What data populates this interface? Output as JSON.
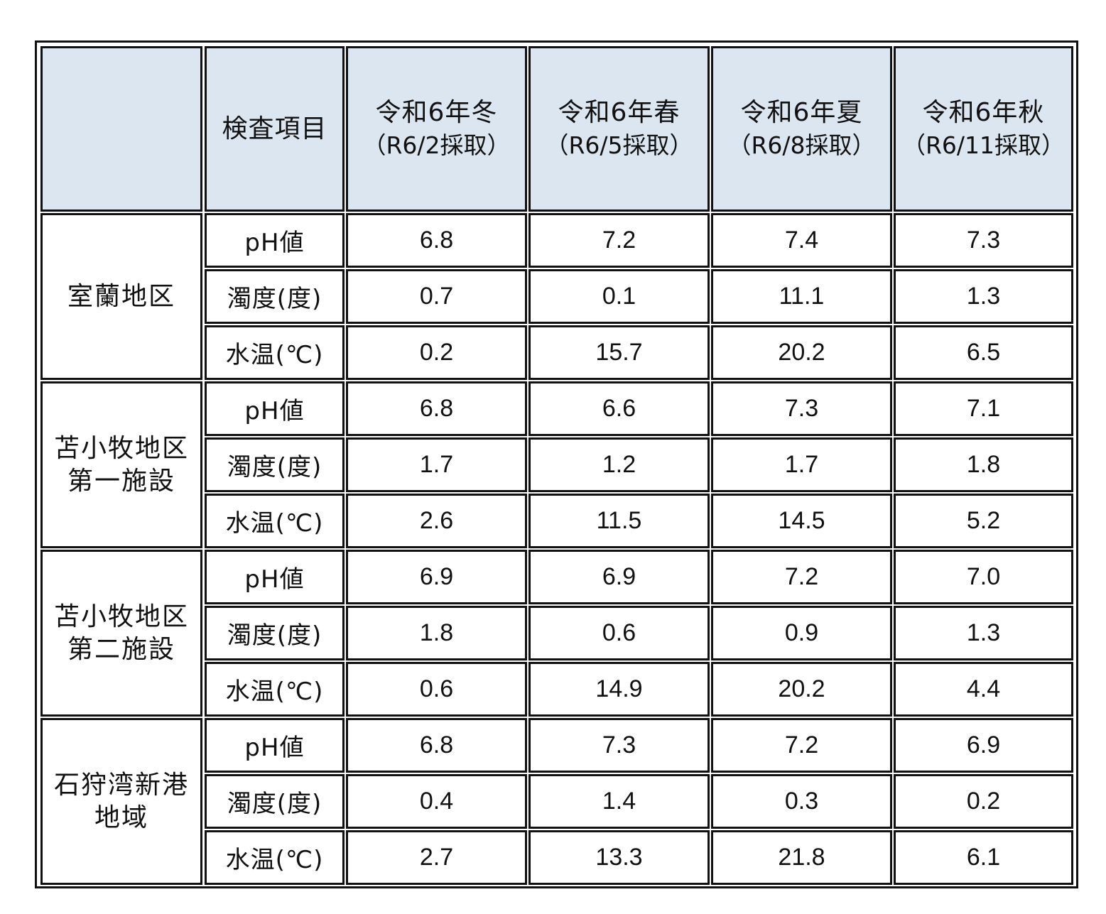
{
  "table": {
    "corner": "",
    "item_header": "検査項目",
    "columns": [
      {
        "season": "令和6年冬",
        "sampled": "（R6/2採取）"
      },
      {
        "season": "令和6年春",
        "sampled": "（R6/5採取）"
      },
      {
        "season": "令和6年夏",
        "sampled": "（R6/8採取）"
      },
      {
        "season": "令和6年秋",
        "sampled": "（R6/11採取）"
      }
    ],
    "areas": [
      {
        "name_lines": [
          "室蘭地区"
        ],
        "rows": [
          {
            "item": "pH値",
            "values": [
              "6.8",
              "7.2",
              "7.4",
              "7.3"
            ]
          },
          {
            "item": "濁度(度)",
            "values": [
              "0.7",
              "0.1",
              "11.1",
              "1.3"
            ]
          },
          {
            "item": "水温(℃)",
            "values": [
              "0.2",
              "15.7",
              "20.2",
              "6.5"
            ]
          }
        ]
      },
      {
        "name_lines": [
          "苫小牧地区",
          "第一施設"
        ],
        "rows": [
          {
            "item": "pH値",
            "values": [
              "6.8",
              "6.6",
              "7.3",
              "7.1"
            ]
          },
          {
            "item": "濁度(度)",
            "values": [
              "1.7",
              "1.2",
              "1.7",
              "1.8"
            ]
          },
          {
            "item": "水温(℃)",
            "values": [
              "2.6",
              "11.5",
              "14.5",
              "5.2"
            ]
          }
        ]
      },
      {
        "name_lines": [
          "苫小牧地区",
          "第二施設"
        ],
        "rows": [
          {
            "item": "pH値",
            "values": [
              "6.9",
              "6.9",
              "7.2",
              "7.0"
            ]
          },
          {
            "item": "濁度(度)",
            "values": [
              "1.8",
              "0.6",
              "0.9",
              "1.3"
            ]
          },
          {
            "item": "水温(℃)",
            "values": [
              "0.6",
              "14.9",
              "20.2",
              "4.4"
            ]
          }
        ]
      },
      {
        "name_lines": [
          "石狩湾新港",
          "地域"
        ],
        "rows": [
          {
            "item": "pH値",
            "values": [
              "6.8",
              "7.3",
              "7.2",
              "6.9"
            ]
          },
          {
            "item": "濁度(度)",
            "values": [
              "0.4",
              "1.4",
              "0.3",
              "0.2"
            ]
          },
          {
            "item": "水温(℃)",
            "values": [
              "2.7",
              "13.3",
              "21.8",
              "6.1"
            ]
          }
        ]
      }
    ]
  }
}
